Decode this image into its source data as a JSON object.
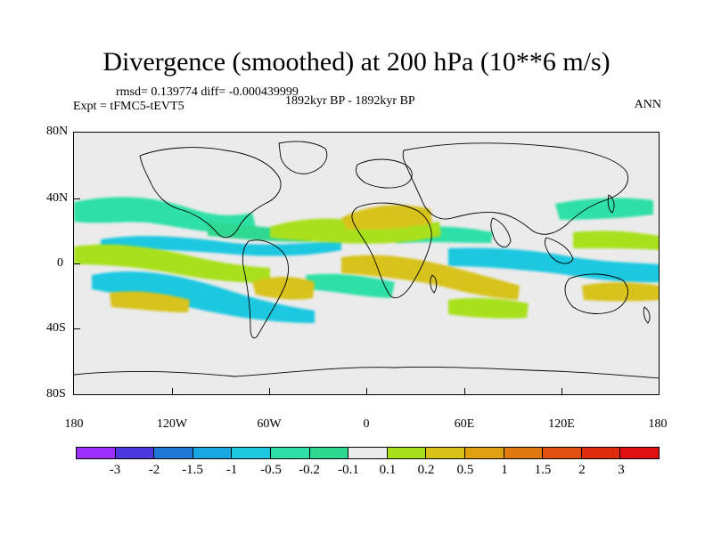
{
  "title": "Divergence (smoothed) at 200 hPa (10**6 m/s)",
  "stats": "rmsd= 0.139774 diff= -0.000439999",
  "experiment": "Expt = tFMC5-tEVT5",
  "period": "1892kyr BP - 1892kyr BP",
  "season": "ANN",
  "lat_labels": [
    "80N",
    "40N",
    "0",
    "40S",
    "80S"
  ],
  "lon_labels": [
    "180",
    "120W",
    "60W",
    "0",
    "60E",
    "120E",
    "180"
  ],
  "colorbar": {
    "labels": [
      "-3",
      "-2",
      "-1.5",
      "-1",
      "-0.5",
      "-0.2",
      "-0.1",
      "0.1",
      "0.2",
      "0.5",
      "1",
      "1.5",
      "2",
      "3"
    ],
    "colors": [
      "#9b30ff",
      "#4a3ae0",
      "#1f78d4",
      "#1aa6e0",
      "#1ec8e0",
      "#2ee0a6",
      "#2fd890",
      "#ebebeb",
      "#a8e01e",
      "#d8c21a",
      "#e0a010",
      "#e07a10",
      "#e05010",
      "#e02d10",
      "#e01010"
    ]
  }
}
